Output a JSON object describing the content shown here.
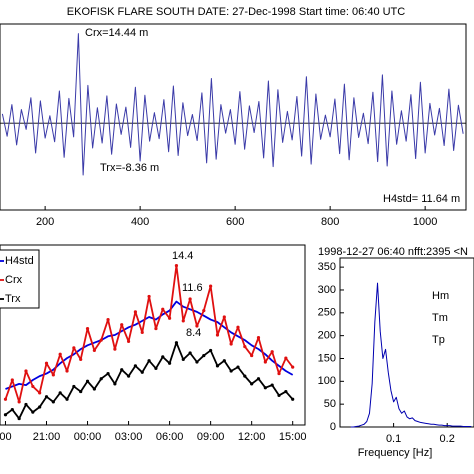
{
  "chart_data": [
    {
      "type": "line",
      "title": "EKOFISK FLARE SOUTH   DATE: 27-Dec-1998    Start time: 06:40 UTC",
      "x": [
        110,
        120,
        130,
        140,
        150,
        160,
        170,
        180,
        190,
        200,
        210,
        220,
        230,
        240,
        250,
        260,
        270,
        280,
        290,
        300,
        310,
        320,
        330,
        340,
        350,
        360,
        370,
        380,
        390,
        400,
        410,
        420,
        430,
        440,
        450,
        460,
        470,
        480,
        490,
        500,
        510,
        520,
        530,
        540,
        550,
        560,
        570,
        580,
        590,
        600,
        610,
        620,
        630,
        640,
        650,
        660,
        670,
        680,
        690,
        700,
        710,
        720,
        730,
        740,
        750,
        760,
        770,
        780,
        790,
        800,
        810,
        820,
        830,
        840,
        850,
        860,
        870,
        880,
        890,
        900,
        910,
        920,
        930,
        940,
        950,
        960,
        970,
        980,
        990,
        1000,
        1010,
        1020,
        1030,
        1040,
        1050,
        1060,
        1070,
        1080
      ],
      "series": [
        {
          "name": "elevation",
          "color": "#3a3aa8",
          "values": [
            1.5,
            -2.1,
            3.0,
            -3.5,
            2.2,
            -1.0,
            4.1,
            -4.8,
            3.6,
            -2.4,
            1.2,
            -3.0,
            5.2,
            -5.5,
            4.0,
            -2.2,
            14.44,
            -8.36,
            6.1,
            -4.0,
            2.5,
            -3.2,
            4.4,
            -5.0,
            3.1,
            -1.8,
            2.6,
            -3.9,
            5.8,
            -6.1,
            4.5,
            -2.9,
            1.7,
            -2.5,
            3.8,
            -4.6,
            6.0,
            -5.2,
            3.3,
            -2.0,
            1.4,
            -2.8,
            4.9,
            -6.4,
            7.2,
            -5.8,
            3.0,
            -1.6,
            2.2,
            -3.4,
            5.1,
            -4.2,
            2.8,
            -1.5,
            3.5,
            -5.6,
            6.8,
            -7.0,
            5.4,
            -3.1,
            1.9,
            -2.7,
            4.3,
            -5.3,
            7.5,
            -6.6,
            4.7,
            -2.6,
            1.3,
            -2.2,
            3.9,
            -4.9,
            6.3,
            -5.9,
            4.1,
            -2.3,
            1.6,
            -3.3,
            5.0,
            -6.2,
            7.8,
            -6.9,
            5.2,
            -3.4,
            2.0,
            -2.9,
            4.6,
            -5.7,
            6.6,
            -4.8,
            3.2,
            -1.9,
            2.4,
            -3.6,
            5.5,
            -4.4,
            2.9,
            -1.7
          ]
        }
      ],
      "hline": 0,
      "xlim": [
        105,
        1086
      ],
      "xticks": [
        200,
        400,
        600,
        800,
        1000
      ],
      "ylim": [
        -14,
        16
      ],
      "annotations": [
        {
          "text": "Crx=14.44 m"
        },
        {
          "text": "Trx=-8.36 m"
        },
        {
          "text": "H4std= 11.64 m"
        }
      ]
    },
    {
      "type": "line",
      "x": [
        18,
        18.5,
        19,
        19.5,
        20,
        20.5,
        21,
        21.5,
        22,
        22.5,
        23,
        23.5,
        24,
        24.5,
        25,
        25.5,
        26,
        26.5,
        27,
        27.5,
        28,
        28.5,
        29,
        29.5,
        30,
        30.5,
        31,
        31.5,
        32,
        32.5,
        33,
        33.5,
        34,
        34.5,
        35,
        35.5,
        36,
        36.5,
        37,
        37.5,
        38,
        38.5,
        39
      ],
      "series": [
        {
          "name": "H4std",
          "color": "#0000e0",
          "values": [
            4.8,
            5.0,
            5.2,
            5.1,
            5.5,
            5.8,
            6.0,
            6.3,
            6.8,
            7.2,
            7.5,
            7.9,
            8.2,
            8.4,
            8.6,
            8.9,
            9.0,
            9.3,
            9.6,
            9.8,
            10.1,
            10.4,
            10.2,
            10.6,
            10.9,
            11.6,
            11.2,
            11.0,
            10.8,
            10.5,
            10.2,
            10.0,
            9.6,
            9.2,
            8.9,
            8.6,
            8.2,
            7.9,
            7.5,
            7.0,
            6.6,
            6.2,
            5.9
          ]
        },
        {
          "name": "Crx",
          "color": "#e01010",
          "marker": "o",
          "values": [
            4.0,
            5.5,
            3.8,
            6.2,
            5.0,
            4.5,
            6.8,
            5.9,
            7.5,
            6.2,
            8.0,
            7.1,
            9.5,
            7.8,
            8.6,
            10.2,
            7.9,
            9.8,
            8.5,
            10.8,
            9.2,
            12.0,
            9.5,
            11.0,
            10.3,
            14.4,
            10.1,
            11.8,
            9.7,
            10.9,
            12.8,
            9.0,
            10.4,
            8.3,
            9.6,
            8.1,
            7.4,
            8.8,
            6.9,
            7.7,
            6.0,
            7.2,
            6.5
          ]
        },
        {
          "name": "Trx",
          "color": "#000000",
          "marker": "o",
          "values": [
            2.8,
            3.2,
            2.5,
            3.6,
            3.0,
            3.4,
            4.2,
            3.8,
            4.5,
            4.0,
            5.0,
            4.6,
            5.4,
            4.8,
            5.6,
            6.0,
            5.2,
            6.3,
            5.8,
            6.6,
            6.1,
            7.0,
            6.4,
            7.3,
            6.8,
            8.4,
            7.1,
            7.6,
            6.9,
            7.4,
            7.8,
            6.6,
            7.0,
            6.2,
            6.5,
            5.8,
            5.2,
            5.6,
            4.9,
            5.1,
            4.3,
            4.6,
            4.0
          ]
        }
      ],
      "xlim": [
        17.6,
        39.9
      ],
      "xticks": [
        {
          "value": 18,
          "label": "00"
        },
        {
          "value": 21,
          "label": "21:00"
        },
        {
          "value": 24,
          "label": "00:00"
        },
        {
          "value": 27,
          "label": "03:00"
        },
        {
          "value": 30,
          "label": "06:00"
        },
        {
          "value": 33,
          "label": "09:00"
        },
        {
          "value": 36,
          "label": "12:00"
        },
        {
          "value": 39,
          "label": "15:00"
        }
      ],
      "ylim": [
        2,
        16
      ],
      "legend": "upper left",
      "annotations": [
        {
          "text": "14.4",
          "color": "#e01010"
        },
        {
          "text": "11.6",
          "color": "#0000e0"
        },
        {
          "text": "8.4",
          "color": "#000000"
        }
      ]
    },
    {
      "type": "line",
      "title": "1998-12-27 06:40 nfft:2395 <N",
      "x": [
        0.02,
        0.025,
        0.03,
        0.035,
        0.04,
        0.045,
        0.05,
        0.055,
        0.06,
        0.065,
        0.07,
        0.075,
        0.08,
        0.085,
        0.09,
        0.095,
        0.1,
        0.105,
        0.11,
        0.115,
        0.12,
        0.125,
        0.13,
        0.135,
        0.14,
        0.145,
        0.15,
        0.155,
        0.16,
        0.165,
        0.17,
        0.175,
        0.18,
        0.185,
        0.19,
        0.195,
        0.2,
        0.205,
        0.21,
        0.215,
        0.22,
        0.225,
        0.23,
        0.235,
        0.24,
        0.245
      ],
      "series": [
        {
          "name": "spectrum",
          "color": "#0000b0",
          "values": [
            0,
            0,
            1,
            2,
            4,
            6,
            12,
            30,
            95,
            230,
            315,
            210,
            150,
            170,
            120,
            80,
            55,
            65,
            40,
            30,
            35,
            22,
            18,
            20,
            14,
            12,
            10,
            9,
            8,
            7,
            6,
            6,
            5,
            4,
            4,
            3,
            3,
            3,
            2,
            2,
            2,
            2,
            1,
            1,
            1,
            1
          ]
        }
      ],
      "xlabel": "Frequency [Hz]",
      "xlim": [
        0,
        0.25
      ],
      "xticks": [
        0.1,
        0.2
      ],
      "ylim": [
        0,
        370
      ],
      "yticks": [
        0,
        50,
        100,
        150,
        200,
        250,
        300,
        350
      ],
      "annotations": [
        {
          "text": "Hm"
        },
        {
          "text": "Tm"
        },
        {
          "text": "Tp"
        }
      ]
    }
  ]
}
